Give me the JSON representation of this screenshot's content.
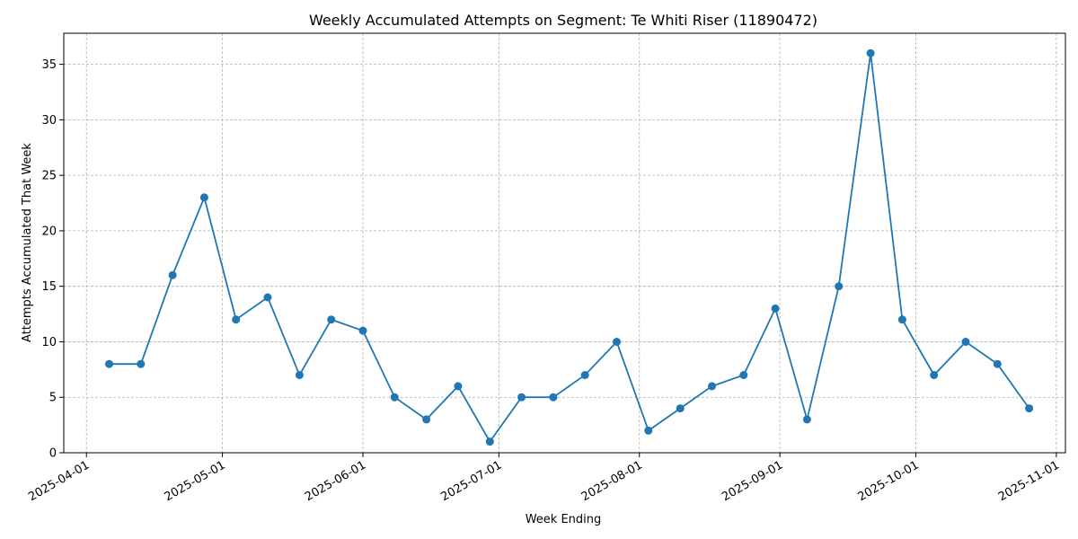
{
  "chart_data": {
    "type": "line",
    "title": "Weekly Accumulated Attempts on Segment: Te Whiti Riser (11890472)",
    "xlabel": "Week Ending",
    "ylabel": "Attempts Accumulated That Week",
    "x_scale": "date",
    "xlim": [
      "2025-03-27",
      "2025-11-03"
    ],
    "ylim": [
      0,
      37.8
    ],
    "x_ticks": [
      "2025-04-01",
      "2025-05-01",
      "2025-06-01",
      "2025-07-01",
      "2025-08-01",
      "2025-09-01",
      "2025-10-01",
      "2025-11-01"
    ],
    "y_ticks": [
      0,
      5,
      10,
      15,
      20,
      25,
      30,
      35
    ],
    "grid": true,
    "marker": "circle",
    "color": "#1f77b4",
    "x": [
      "2025-04-06",
      "2025-04-13",
      "2025-04-20",
      "2025-04-27",
      "2025-05-04",
      "2025-05-11",
      "2025-05-18",
      "2025-05-25",
      "2025-06-01",
      "2025-06-08",
      "2025-06-15",
      "2025-06-22",
      "2025-06-29",
      "2025-07-06",
      "2025-07-13",
      "2025-07-20",
      "2025-07-27",
      "2025-08-03",
      "2025-08-10",
      "2025-08-17",
      "2025-08-24",
      "2025-08-31",
      "2025-09-07",
      "2025-09-14",
      "2025-09-21",
      "2025-09-28",
      "2025-10-05",
      "2025-10-12",
      "2025-10-19",
      "2025-10-26"
    ],
    "y": [
      8,
      8,
      16,
      23,
      12,
      14,
      7,
      12,
      11,
      5,
      3,
      6,
      1,
      5,
      5,
      7,
      10,
      2,
      4,
      6,
      7,
      13,
      3,
      15,
      36,
      12,
      7,
      10,
      8,
      4
    ]
  }
}
